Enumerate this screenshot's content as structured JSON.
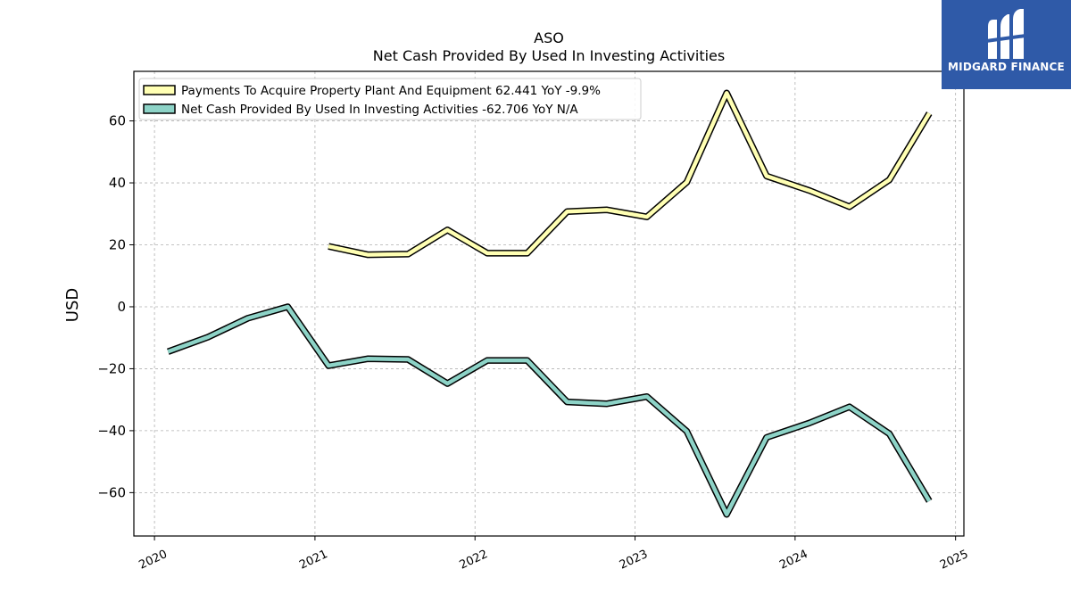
{
  "brand": {
    "name": "MIDGARD FINANCE",
    "color": "#2f5aa8"
  },
  "chart_data": {
    "type": "line",
    "title": "ASO",
    "subtitle": "Net Cash Provided By Used In Investing Activities",
    "xlabel": "",
    "ylabel": "USD",
    "x_ticks": [
      "2020",
      "2021",
      "2022",
      "2023",
      "2024",
      "2025"
    ],
    "y_ticks": [
      -60,
      -40,
      -20,
      0,
      20,
      40,
      60
    ],
    "xlim": [
      "2019-11-15",
      "2025-01-20"
    ],
    "ylim": [
      -74,
      76
    ],
    "grid": true,
    "legend_position": "top-left",
    "series": [
      {
        "name": "Payments To Acquire Property Plant And Equipment",
        "legend_label": "Payments To Acquire Property Plant And Equipment  62.441 YoY -9.9%",
        "color": "#ffffb3",
        "points": [
          [
            "2021-02-01",
            19.5
          ],
          [
            "2021-05-01",
            16.8
          ],
          [
            "2021-08-01",
            17.0
          ],
          [
            "2021-10-30",
            24.8
          ],
          [
            "2022-01-29",
            17.3
          ],
          [
            "2022-04-30",
            17.3
          ],
          [
            "2022-07-30",
            30.7
          ],
          [
            "2022-10-29",
            31.3
          ],
          [
            "2023-01-28",
            29.0
          ],
          [
            "2023-04-29",
            40.2
          ],
          [
            "2023-07-29",
            69.0
          ],
          [
            "2023-10-28",
            42.2
          ],
          [
            "2024-02-03",
            37.5
          ],
          [
            "2024-05-04",
            32.3
          ],
          [
            "2024-08-03",
            41.0
          ],
          [
            "2024-11-02",
            62.441
          ]
        ]
      },
      {
        "name": "Net Cash Provided By Used In Investing Activities",
        "legend_label": "Net Cash Provided By Used In Investing Activities  -62.706 YoY N/A",
        "color": "#8dd3c7",
        "points": [
          [
            "2020-02-01",
            -14.5
          ],
          [
            "2020-05-02",
            -9.8
          ],
          [
            "2020-08-01",
            -3.7
          ],
          [
            "2020-10-31",
            0.0
          ],
          [
            "2021-02-01",
            -19.0
          ],
          [
            "2021-05-01",
            -16.8
          ],
          [
            "2021-08-01",
            -17.0
          ],
          [
            "2021-10-30",
            -24.8
          ],
          [
            "2022-01-29",
            -17.3
          ],
          [
            "2022-04-30",
            -17.3
          ],
          [
            "2022-07-30",
            -30.7
          ],
          [
            "2022-10-29",
            -31.3
          ],
          [
            "2023-01-28",
            -29.0
          ],
          [
            "2023-04-29",
            -40.2
          ],
          [
            "2023-07-29",
            -67.0
          ],
          [
            "2023-10-28",
            -42.2
          ],
          [
            "2024-02-03",
            -37.5
          ],
          [
            "2024-05-04",
            -32.3
          ],
          [
            "2024-08-03",
            -41.0
          ],
          [
            "2024-11-02",
            -62.706
          ]
        ]
      }
    ]
  }
}
